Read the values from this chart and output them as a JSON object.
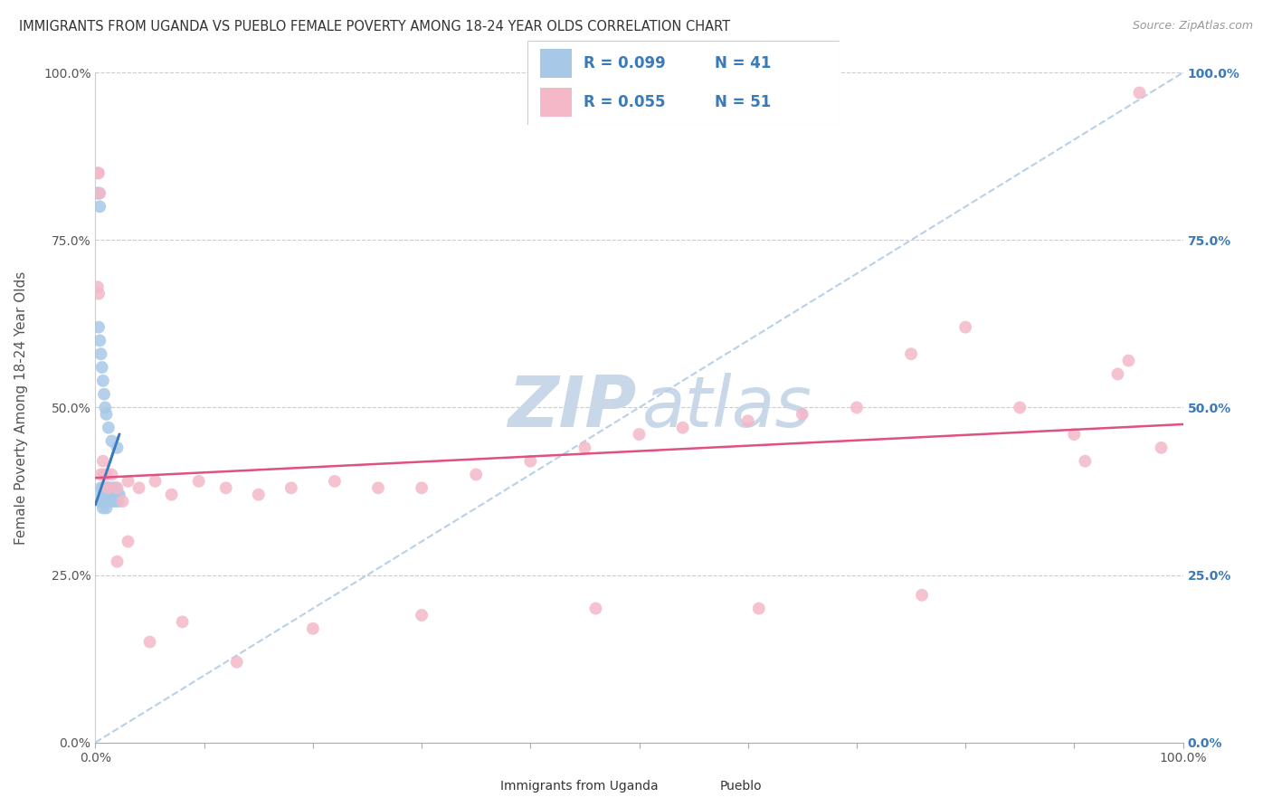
{
  "title": "IMMIGRANTS FROM UGANDA VS PUEBLO FEMALE POVERTY AMONG 18-24 YEAR OLDS CORRELATION CHART",
  "source": "Source: ZipAtlas.com",
  "ylabel": "Female Poverty Among 18-24 Year Olds",
  "legend_label1": "Immigrants from Uganda",
  "legend_label2": "Pueblo",
  "legend_r1": "R = 0.099",
  "legend_n1": "N = 41",
  "legend_r2": "R = 0.055",
  "legend_n2": "N = 51",
  "blue_color": "#a8c8e8",
  "pink_color": "#f4b8c8",
  "trend_blue_color": "#3a7ab8",
  "trend_pink_color": "#e05080",
  "trend_dash_color": "#b8d0e8",
  "legend_text_color": "#3a7ab8",
  "right_tick_color": "#3a7ab8",
  "watermark_zip_color": "#c8d8e8",
  "watermark_atlas_color": "#c8d8e8",
  "blue_scatter_x": [
    0.002,
    0.003,
    0.004,
    0.005,
    0.005,
    0.006,
    0.006,
    0.007,
    0.007,
    0.008,
    0.008,
    0.009,
    0.009,
    0.01,
    0.01,
    0.01,
    0.011,
    0.011,
    0.012,
    0.012,
    0.013,
    0.014,
    0.015,
    0.016,
    0.017,
    0.018,
    0.019,
    0.02,
    0.021,
    0.022,
    0.003,
    0.004,
    0.005,
    0.006,
    0.007,
    0.008,
    0.009,
    0.01,
    0.012,
    0.015,
    0.02
  ],
  "blue_scatter_y": [
    0.82,
    0.82,
    0.8,
    0.38,
    0.36,
    0.37,
    0.36,
    0.38,
    0.35,
    0.37,
    0.36,
    0.38,
    0.37,
    0.36,
    0.35,
    0.37,
    0.36,
    0.38,
    0.37,
    0.36,
    0.38,
    0.37,
    0.36,
    0.38,
    0.37,
    0.36,
    0.38,
    0.37,
    0.36,
    0.37,
    0.62,
    0.6,
    0.58,
    0.56,
    0.54,
    0.52,
    0.5,
    0.49,
    0.47,
    0.45,
    0.44
  ],
  "pink_scatter_x": [
    0.002,
    0.003,
    0.004,
    0.005,
    0.007,
    0.01,
    0.012,
    0.015,
    0.02,
    0.025,
    0.03,
    0.04,
    0.055,
    0.07,
    0.095,
    0.12,
    0.15,
    0.18,
    0.22,
    0.26,
    0.3,
    0.35,
    0.4,
    0.45,
    0.5,
    0.54,
    0.6,
    0.65,
    0.7,
    0.75,
    0.8,
    0.85,
    0.9,
    0.94,
    0.96,
    0.002,
    0.003,
    0.008,
    0.02,
    0.03,
    0.05,
    0.08,
    0.13,
    0.2,
    0.3,
    0.46,
    0.61,
    0.76,
    0.91,
    0.95,
    0.98
  ],
  "pink_scatter_y": [
    0.85,
    0.85,
    0.82,
    0.4,
    0.42,
    0.4,
    0.38,
    0.4,
    0.38,
    0.36,
    0.39,
    0.38,
    0.39,
    0.37,
    0.39,
    0.38,
    0.37,
    0.38,
    0.39,
    0.38,
    0.38,
    0.4,
    0.42,
    0.44,
    0.46,
    0.47,
    0.48,
    0.49,
    0.5,
    0.58,
    0.62,
    0.5,
    0.46,
    0.55,
    0.97,
    0.68,
    0.67,
    0.4,
    0.27,
    0.3,
    0.15,
    0.18,
    0.12,
    0.17,
    0.19,
    0.2,
    0.2,
    0.22,
    0.42,
    0.57,
    0.44
  ]
}
